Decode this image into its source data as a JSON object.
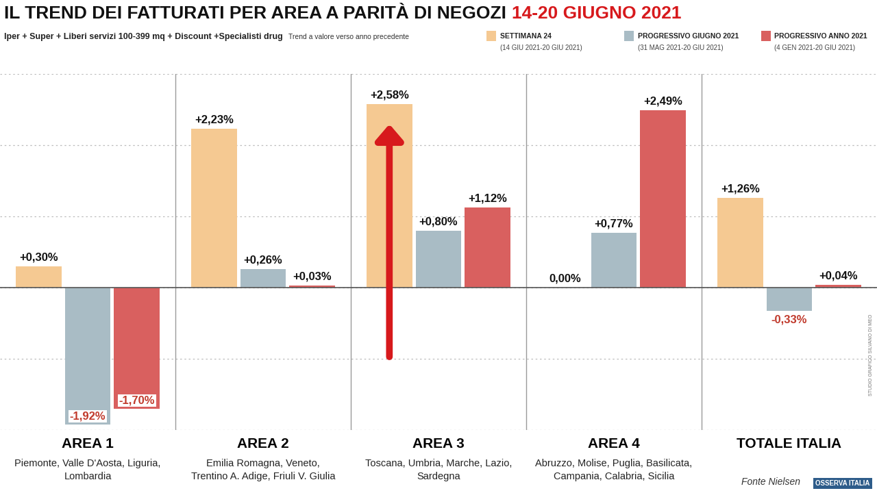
{
  "chart_data": {
    "type": "bar",
    "title": "IL TREND DEI FATTURATI PER AREA A PARITÀ DI NEGOZI",
    "title_dates": "14-20 GIUGNO 2021",
    "subtitle": "Iper + Super + Liberi servizi 100-399 mq + Discount +Specialisti drug",
    "subtitle_note": "Trend a valore verso anno precedente",
    "categories": [
      "AREA 1",
      "AREA 2",
      "AREA 3",
      "AREA 4",
      "TOTALE ITALIA"
    ],
    "regions": [
      "Piemonte, Valle D'Aosta, Liguria,\nLombardia",
      "Emilia Romagna, Veneto,\nTrentino A. Adige, Friuli V. Giulia",
      "Toscana, Umbria, Marche, Lazio,\nSardegna",
      "Abruzzo, Molise, Puglia, Basilicata,\nCampania, Calabria, Sicilia",
      null
    ],
    "series": [
      {
        "name": "SETTIMANA 24",
        "period": "(14 GIU 2021-20 GIU 2021)",
        "color": "#F5C992",
        "values": [
          0.3,
          2.23,
          2.58,
          0.0,
          1.26
        ],
        "value_labels": [
          "+0,30%",
          "+2,23%",
          "+2,58%",
          "0,00%",
          "+1,26%"
        ]
      },
      {
        "name": "PROGRESSIVO GIUGNO 2021",
        "period": "(31 MAG 2021-20 GIU 2021)",
        "color": "#A9BCC5",
        "values": [
          -1.92,
          0.26,
          0.8,
          0.77,
          -0.33
        ],
        "value_labels": [
          "-1,92%",
          "+0,26%",
          "+0,80%",
          "+0,77%",
          "-0,33%"
        ]
      },
      {
        "name": "PROGRESSIVO ANNO 2021",
        "period": "(4 GEN 2021-20 GIU 2021)",
        "color": "#D9605F",
        "values": [
          -1.7,
          0.03,
          1.12,
          2.49,
          0.04
        ],
        "value_labels": [
          "-1,70%",
          "+0,03%",
          "+1,12%",
          "+2,49%",
          "+0,04%"
        ]
      }
    ],
    "ylim": [
      -2,
      3
    ],
    "yticks": [
      -2,
      -1,
      0,
      1,
      2,
      3
    ],
    "grid": true,
    "data_labels": true,
    "tick_labels": "x",
    "source": "Fonte Nielsen",
    "logo": "OSSERVA ITALIA",
    "credit": "STUDIO GRAFICO SILVANO DI MEO"
  }
}
